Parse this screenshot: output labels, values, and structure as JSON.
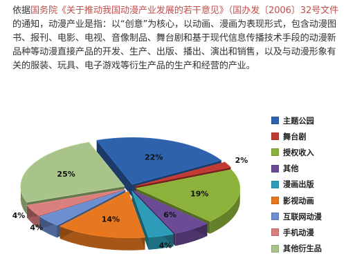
{
  "intro": {
    "prefix": "依据",
    "highlight": "国务院《关于推动我国动漫产业发展的若干意见》（国办发〔2006〕32号文件",
    "rest": "的通知，动漫产业是指：以“创意”为核心，以动画、漫画为表现形式，包含动漫图书、报刊、电影、电视、音像制品、舞台剧和基于现代信息传播技术手段的动漫新品种等动漫直接产品的开发、生产、出版、播出、演出和销售，以及与动漫形象有关的服装、玩具、电子游戏等衍生产品的生产和经营的产业。"
  },
  "colors": {
    "highlight": "#c0504d",
    "text": "#333333"
  },
  "chart_data": {
    "type": "pie",
    "style": "3d-exploded",
    "legend_position": "right",
    "categories": [
      "主题公园",
      "舞台剧",
      "授权收入",
      "其他",
      "漫画出版",
      "影视动画",
      "互联网动漫",
      "手机动漫",
      "其他衍生品"
    ],
    "values": [
      22,
      2,
      19,
      6,
      4,
      14,
      4,
      4,
      25
    ],
    "labels": [
      "22%",
      "2%",
      "19%",
      "6%",
      "4%",
      "14%",
      "4%",
      "4%",
      "25%"
    ],
    "colors": [
      "#2e62ad",
      "#c23a34",
      "#8cb23c",
      "#6b4a96",
      "#2d9cb8",
      "#e7781f",
      "#6e8fcf",
      "#d97f7d",
      "#a8c48a"
    ]
  }
}
